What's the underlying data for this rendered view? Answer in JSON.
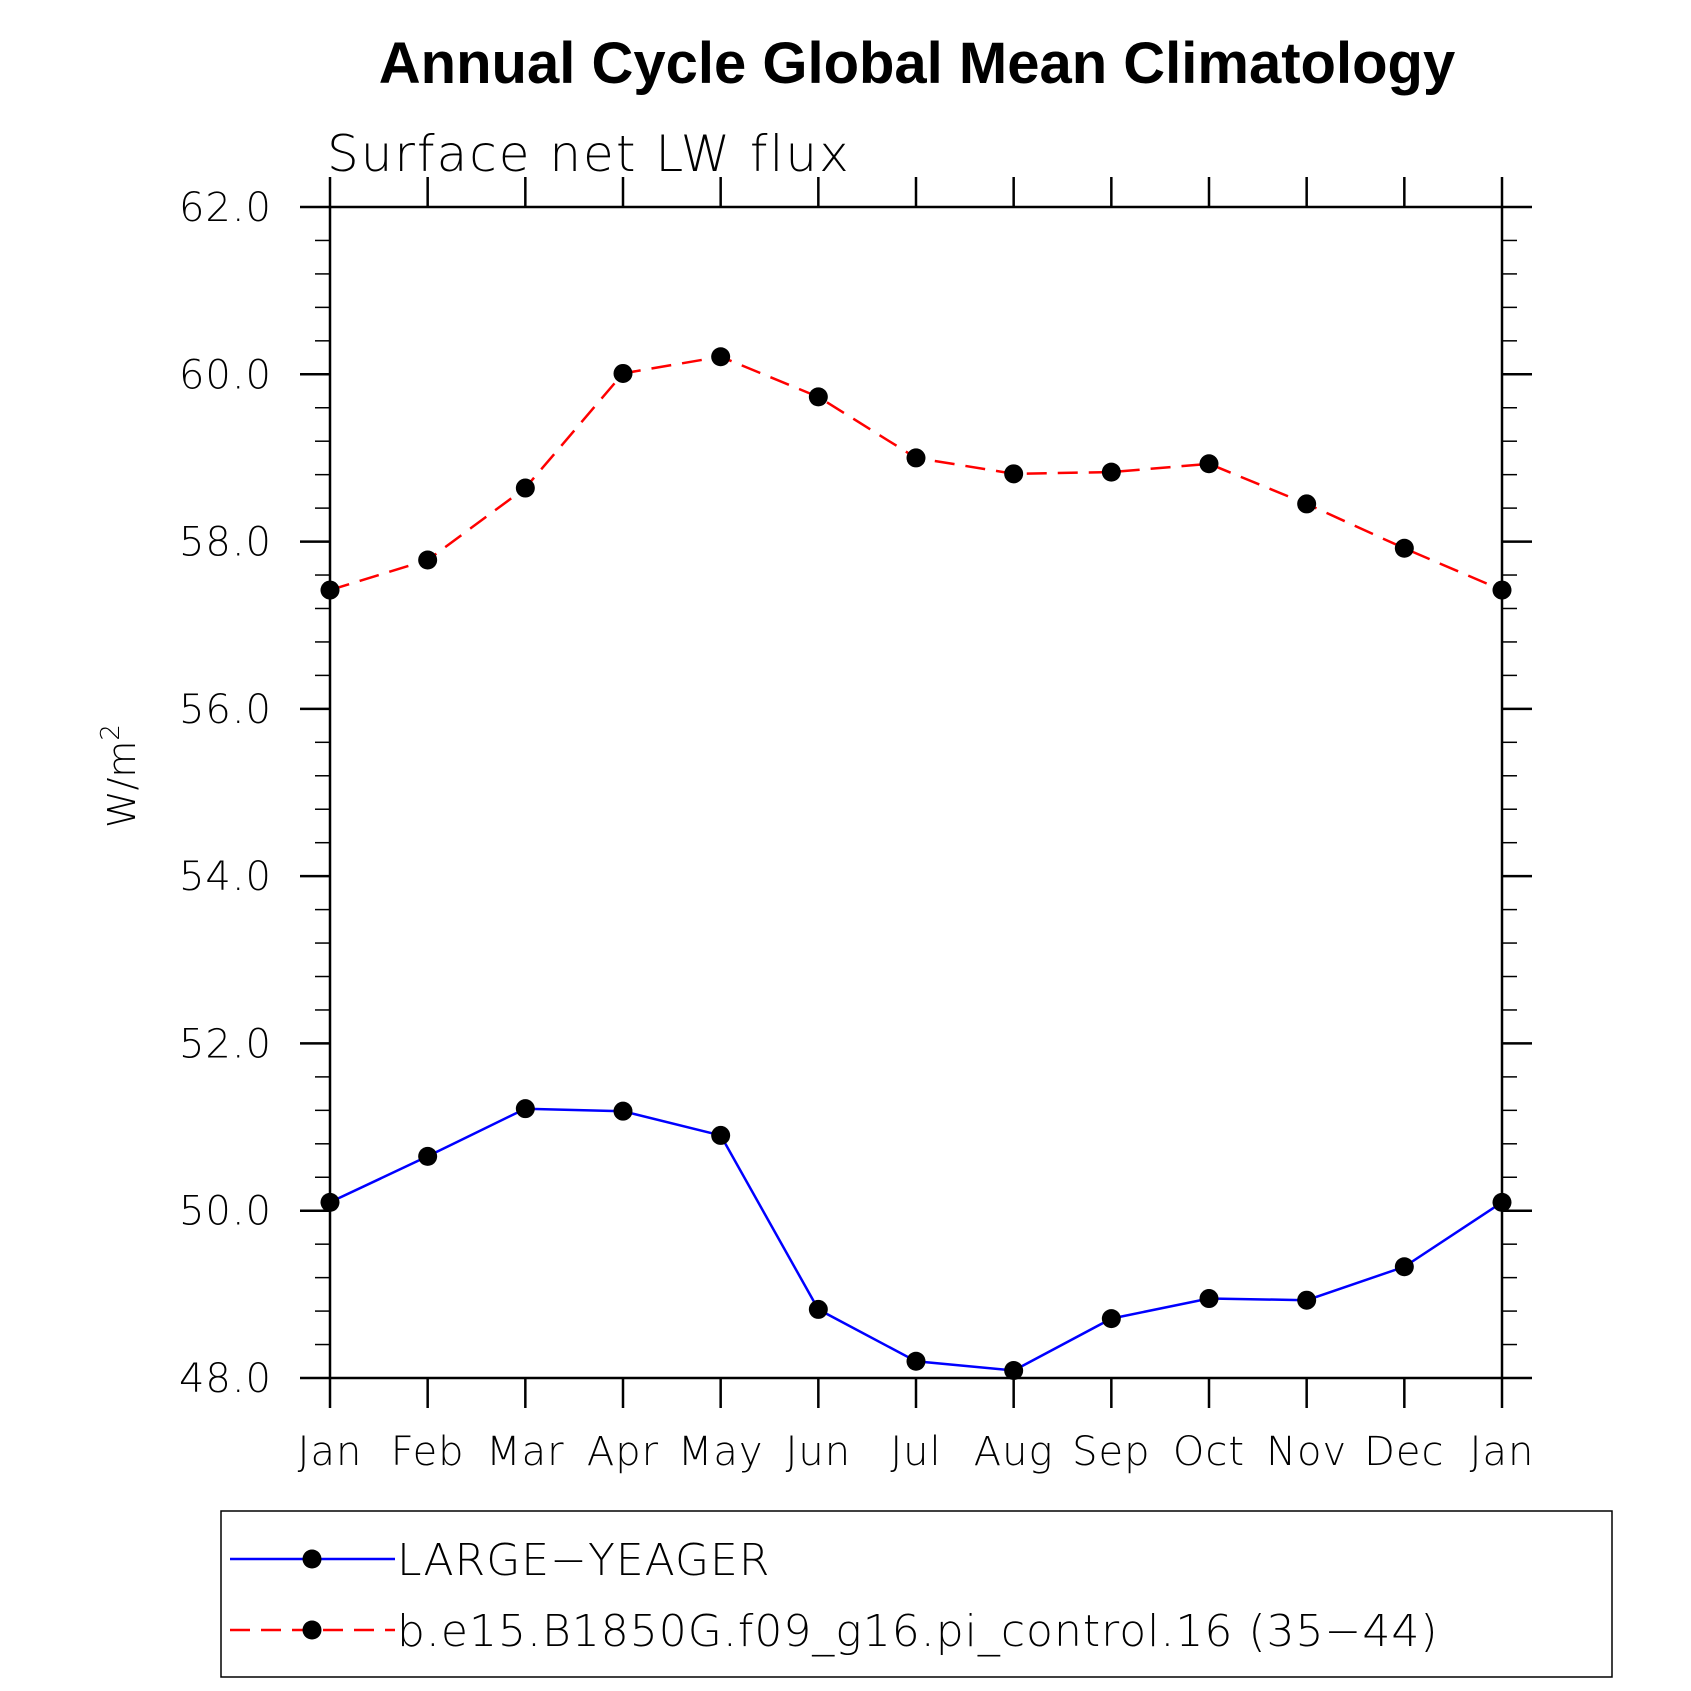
{
  "chart_data": {
    "type": "line",
    "title": "Annual Cycle Global Mean Climatology",
    "subtitle": "Surface net LW flux",
    "ylabel": "W/m",
    "ylabel_superscript": "2",
    "categories": [
      "Jan",
      "Feb",
      "Mar",
      "Apr",
      "May",
      "Jun",
      "Jul",
      "Aug",
      "Sep",
      "Oct",
      "Nov",
      "Dec",
      "Jan"
    ],
    "ylim": [
      48.0,
      62.0
    ],
    "yticks": [
      "48.0",
      "50.0",
      "52.0",
      "54.0",
      "56.0",
      "58.0",
      "60.0",
      "62.0"
    ],
    "grid": false,
    "legend_position": "bottom",
    "series": [
      {
        "name": "LARGE−YEAGER",
        "color": "#0000ff",
        "dash": "solid",
        "marker": "filled-circle",
        "values": [
          50.1,
          50.65,
          51.22,
          51.19,
          50.9,
          48.82,
          48.2,
          48.09,
          48.71,
          48.95,
          48.93,
          49.33,
          50.1
        ]
      },
      {
        "name": "b.e15.B1850G.f09_g16.pi_control.16 (35−44)",
        "color": "#ff0000",
        "dash": "dashed",
        "marker": "filled-circle",
        "values": [
          57.42,
          57.78,
          58.64,
          60.01,
          60.21,
          59.73,
          59.0,
          58.81,
          58.83,
          58.93,
          58.45,
          57.92,
          57.42
        ]
      }
    ]
  }
}
